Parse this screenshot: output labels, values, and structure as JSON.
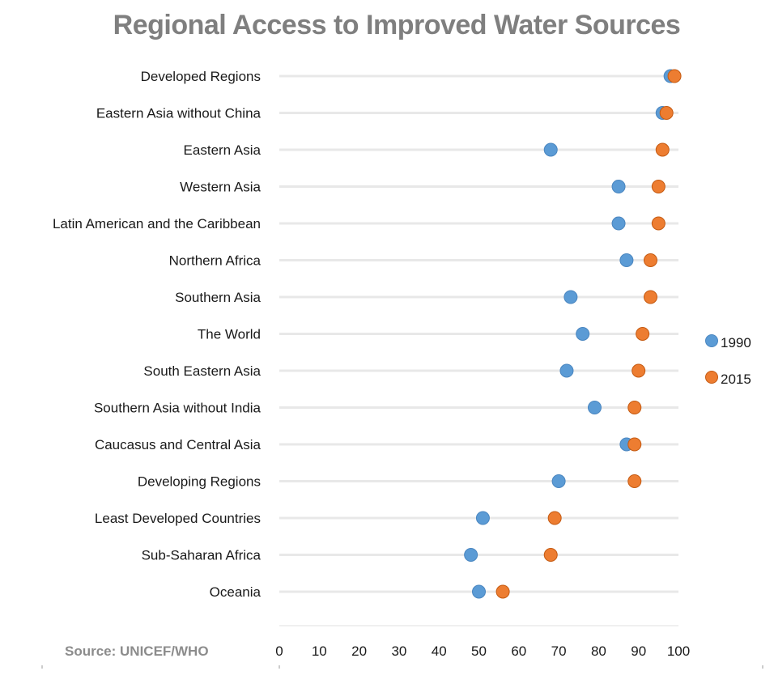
{
  "chart_data": {
    "type": "scatter",
    "title": "Regional Access to Improved Water Sources",
    "source": "Source: UNICEF/WHO",
    "categories": [
      "Developed Regions",
      "Eastern Asia without China",
      "Eastern Asia",
      "Western Asia",
      "Latin American and the Caribbean",
      "Northern Africa",
      "Southern Asia",
      "The World",
      "South Eastern Asia",
      "Southern Asia without India",
      "Caucasus and Central Asia",
      "Developing Regions",
      "Least Developed Countries",
      "Sub-Saharan Africa",
      "Oceania"
    ],
    "series": [
      {
        "name": "1990",
        "color": "#5b9bd5",
        "values": [
          98,
          96,
          68,
          85,
          85,
          87,
          73,
          76,
          72,
          79,
          87,
          70,
          51,
          48,
          50
        ]
      },
      {
        "name": "2015",
        "color": "#ed7d31",
        "values": [
          99,
          97,
          96,
          95,
          95,
          93,
          93,
          91,
          90,
          89,
          89,
          89,
          69,
          68,
          56
        ]
      }
    ],
    "xticks": [
      "0",
      "10",
      "20",
      "30",
      "40",
      "50",
      "60",
      "70",
      "80",
      "90",
      "100"
    ],
    "xlim": [
      0,
      100
    ],
    "legend_position": "right",
    "gridlines": "horizontal per category"
  }
}
